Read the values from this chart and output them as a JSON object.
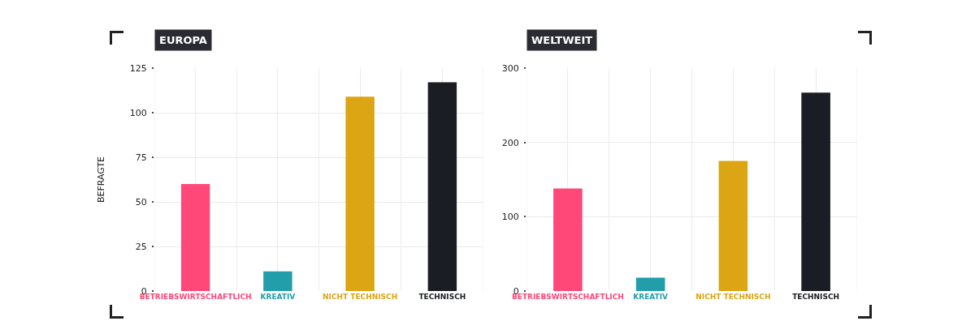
{
  "chart_data": [
    {
      "type": "bar",
      "title": "EUROPA",
      "ylabel": "BEFRAGTE",
      "categories": [
        "BETRIEBSWIRTSCHAFTLICH",
        "KREATIV",
        "NICHT TECHNISCH",
        "TECHNISCH"
      ],
      "values": [
        60,
        11,
        109,
        117
      ],
      "colors": [
        "#ff4778",
        "#229eab",
        "#dba514",
        "#1b1d24"
      ],
      "ylim": [
        0,
        125
      ],
      "yticks": [
        0,
        25,
        50,
        75,
        100,
        125
      ],
      "grid": true
    },
    {
      "type": "bar",
      "title": "WELTWEIT",
      "categories": [
        "BETRIEBSWIRTSCHAFTLICH",
        "KREATIV",
        "NICHT TECHNISCH",
        "TECHNISCH"
      ],
      "values": [
        138,
        18,
        175,
        267
      ],
      "colors": [
        "#ff4778",
        "#229eab",
        "#dba514",
        "#1b1d24"
      ],
      "ylim": [
        0,
        300
      ],
      "yticks": [
        0,
        100,
        200,
        300
      ],
      "grid": true
    }
  ]
}
